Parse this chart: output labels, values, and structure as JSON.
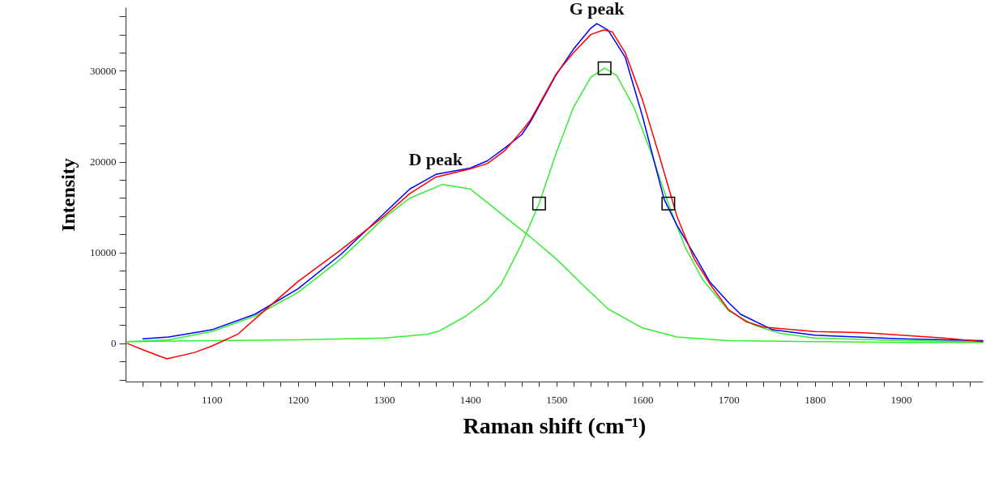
{
  "chart_data": {
    "type": "line",
    "xlabel": "Raman shift (cm⁻¹)",
    "ylabel": "Intensity",
    "xlim": [
      1000,
      1995
    ],
    "ylim": [
      -4200,
      37000
    ],
    "xticks": [
      {
        "value": 1020,
        "label": null
      },
      {
        "value": 1040,
        "label": null
      },
      {
        "value": 1060,
        "label": null
      },
      {
        "value": 1080,
        "label": null
      },
      1100,
      {
        "value": 1120,
        "label": null
      },
      {
        "value": 1140,
        "label": null
      },
      {
        "value": 1160,
        "label": null
      },
      {
        "value": 1180,
        "label": null
      },
      1200,
      {
        "value": 1220,
        "label": null
      },
      {
        "value": 1240,
        "label": null
      },
      {
        "value": 1260,
        "label": null
      },
      {
        "value": 1280,
        "label": null
      },
      1300,
      {
        "value": 1320,
        "label": null
      },
      {
        "value": 1340,
        "label": null
      },
      {
        "value": 1360,
        "label": null
      },
      {
        "value": 1380,
        "label": null
      },
      1400,
      {
        "value": 1420,
        "label": null
      },
      {
        "value": 1440,
        "label": null
      },
      {
        "value": 1460,
        "label": null
      },
      {
        "value": 1480,
        "label": null
      },
      1500,
      {
        "value": 1520,
        "label": null
      },
      {
        "value": 1540,
        "label": null
      },
      {
        "value": 1560,
        "label": null
      },
      {
        "value": 1580,
        "label": null
      },
      1600,
      {
        "value": 1620,
        "label": null
      },
      {
        "value": 1640,
        "label": null
      },
      {
        "value": 1660,
        "label": null
      },
      {
        "value": 1680,
        "label": null
      },
      1700,
      {
        "value": 1720,
        "label": null
      },
      {
        "value": 1740,
        "label": null
      },
      {
        "value": 1760,
        "label": null
      },
      {
        "value": 1780,
        "label": null
      },
      1800,
      {
        "value": 1820,
        "label": null
      },
      {
        "value": 1840,
        "label": null
      },
      {
        "value": 1860,
        "label": null
      },
      {
        "value": 1880,
        "label": null
      },
      1900,
      {
        "value": 1920,
        "label": null
      },
      {
        "value": 1940,
        "label": null
      },
      {
        "value": 1960,
        "label": null
      },
      {
        "value": 1980,
        "label": null
      }
    ],
    "yticks": [
      {
        "value": -4000,
        "label": null
      },
      {
        "value": -2000,
        "label": null
      },
      0,
      {
        "value": 2000,
        "label": null
      },
      {
        "value": 4000,
        "label": null
      },
      {
        "value": 6000,
        "label": null
      },
      {
        "value": 8000,
        "label": null
      },
      10000,
      {
        "value": 12000,
        "label": null
      },
      {
        "value": 14000,
        "label": null
      },
      {
        "value": 16000,
        "label": null
      },
      {
        "value": 18000,
        "label": null
      },
      20000,
      {
        "value": 22000,
        "label": null
      },
      {
        "value": 24000,
        "label": null
      },
      {
        "value": 26000,
        "label": null
      },
      {
        "value": 28000,
        "label": null
      },
      30000,
      {
        "value": 32000,
        "label": null
      },
      {
        "value": 34000,
        "label": null
      },
      {
        "value": 36000,
        "label": null
      }
    ],
    "grid": false,
    "annotations": [
      {
        "text": "D peak",
        "x": 1360,
        "y": 18600
      },
      {
        "text": "G peak",
        "x": 1547,
        "y": 35200
      }
    ],
    "series": [
      {
        "color": "#33ee33",
        "x": [
          1002,
          1050,
          1100,
          1150,
          1200,
          1250,
          1300,
          1330,
          1368,
          1400,
          1420,
          1450,
          1470,
          1500,
          1530,
          1560,
          1600,
          1640,
          1700,
          1800,
          1900,
          1995
        ],
        "values": [
          200,
          400,
          1300,
          3000,
          5600,
          9300,
          13800,
          16000,
          17500,
          17000,
          15500,
          13200,
          11700,
          9300,
          6500,
          3800,
          1700,
          700,
          300,
          200,
          100,
          100
        ]
      },
      {
        "color": "#33ee33",
        "x": [
          1002,
          1100,
          1200,
          1300,
          1350,
          1365,
          1395,
          1420,
          1436,
          1460,
          1480,
          1500,
          1520,
          1540,
          1556,
          1570,
          1590,
          1610,
          1630,
          1650,
          1670,
          1700,
          1730,
          1760,
          1800,
          1900,
          1995
        ],
        "values": [
          200,
          300,
          400,
          600,
          1000,
          1400,
          3000,
          4800,
          6500,
          11000,
          15400,
          21000,
          26000,
          29300,
          30300,
          29500,
          26000,
          21000,
          15400,
          10500,
          7000,
          3600,
          2000,
          1100,
          600,
          300,
          200
        ]
      },
      {
        "color": "#0000ff",
        "x": [
          1020,
          1050,
          1100,
          1150,
          1200,
          1250,
          1300,
          1330,
          1360,
          1400,
          1420,
          1440,
          1460,
          1470,
          1500,
          1520,
          1540,
          1547,
          1560,
          1580,
          1600,
          1625,
          1640,
          1660,
          1678,
          1700,
          1714,
          1751,
          1800,
          1900,
          1995
        ],
        "values": [
          500,
          700,
          1500,
          3200,
          6000,
          9800,
          14300,
          17000,
          18600,
          19300,
          20100,
          21500,
          23000,
          24400,
          29600,
          32400,
          34700,
          35200,
          34500,
          31500,
          25000,
          15900,
          13000,
          9800,
          6800,
          4500,
          3200,
          1500,
          900,
          500,
          300
        ]
      },
      {
        "color": "#ff0000",
        "x": [
          1002,
          1020,
          1048,
          1080,
          1100,
          1130,
          1160,
          1200,
          1250,
          1300,
          1330,
          1360,
          1400,
          1420,
          1440,
          1460,
          1470,
          1500,
          1520,
          1540,
          1555,
          1565,
          1580,
          1600,
          1620,
          1640,
          1660,
          1680,
          1700,
          1720,
          1740,
          1800,
          1850,
          1870,
          1900,
          1950,
          1995
        ],
        "values": [
          0,
          -700,
          -1700,
          -1000,
          -300,
          1000,
          3500,
          6800,
          10300,
          14000,
          16500,
          18300,
          19200,
          19800,
          21200,
          23400,
          24600,
          29700,
          32000,
          34000,
          34500,
          34300,
          32000,
          26800,
          20500,
          14000,
          9300,
          6300,
          3700,
          2400,
          1800,
          1300,
          1200,
          1100,
          900,
          600,
          200
        ]
      },
      {
        "type": "scatter",
        "marker": "square",
        "color": "#000000",
        "x": [
          1480,
          1556,
          1630
        ],
        "values": [
          15400,
          30300,
          15400
        ]
      }
    ]
  }
}
